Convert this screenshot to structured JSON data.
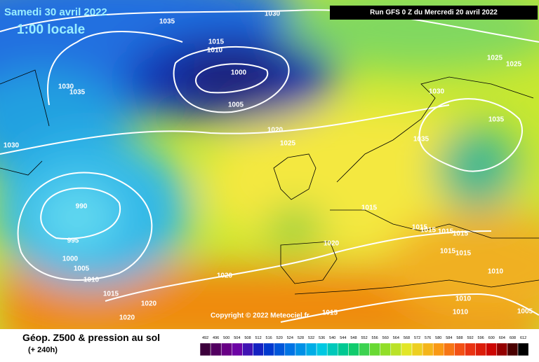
{
  "header": {
    "date": "Samedi 30 avril 2022",
    "time": "1:00 locale",
    "run": "Run GFS 0 Z du Mercredi 20 avril 2022"
  },
  "isobar_labels": [
    "1030",
    "1035",
    "1015",
    "1010",
    "1000",
    "1005",
    "1030",
    "1035",
    "1030",
    "1020",
    "1025",
    "1025",
    "1025",
    "1030",
    "1035",
    "1035",
    "990",
    "995",
    "1000",
    "1005",
    "1010",
    "1015",
    "1020",
    "1020",
    "1020",
    "1020",
    "1015",
    "1015",
    "1015",
    "1015",
    "1015",
    "1015",
    "1015",
    "1010",
    "1010",
    "1010",
    "1005",
    "1015"
  ],
  "copyright": "Copyright © 2022 Meteociel.fr",
  "footer": {
    "title": "Géop. Z500 & pression au sol",
    "lead": "(+ 240h)"
  },
  "legend": {
    "labels": [
      "492",
      "496",
      "500",
      "504",
      "508",
      "512",
      "516",
      "520",
      "524",
      "528",
      "532",
      "536",
      "540",
      "544",
      "548",
      "552",
      "556",
      "560",
      "564",
      "568",
      "572",
      "576",
      "580",
      "584",
      "588",
      "592",
      "596",
      "600",
      "604",
      "608",
      "612"
    ]
  }
}
